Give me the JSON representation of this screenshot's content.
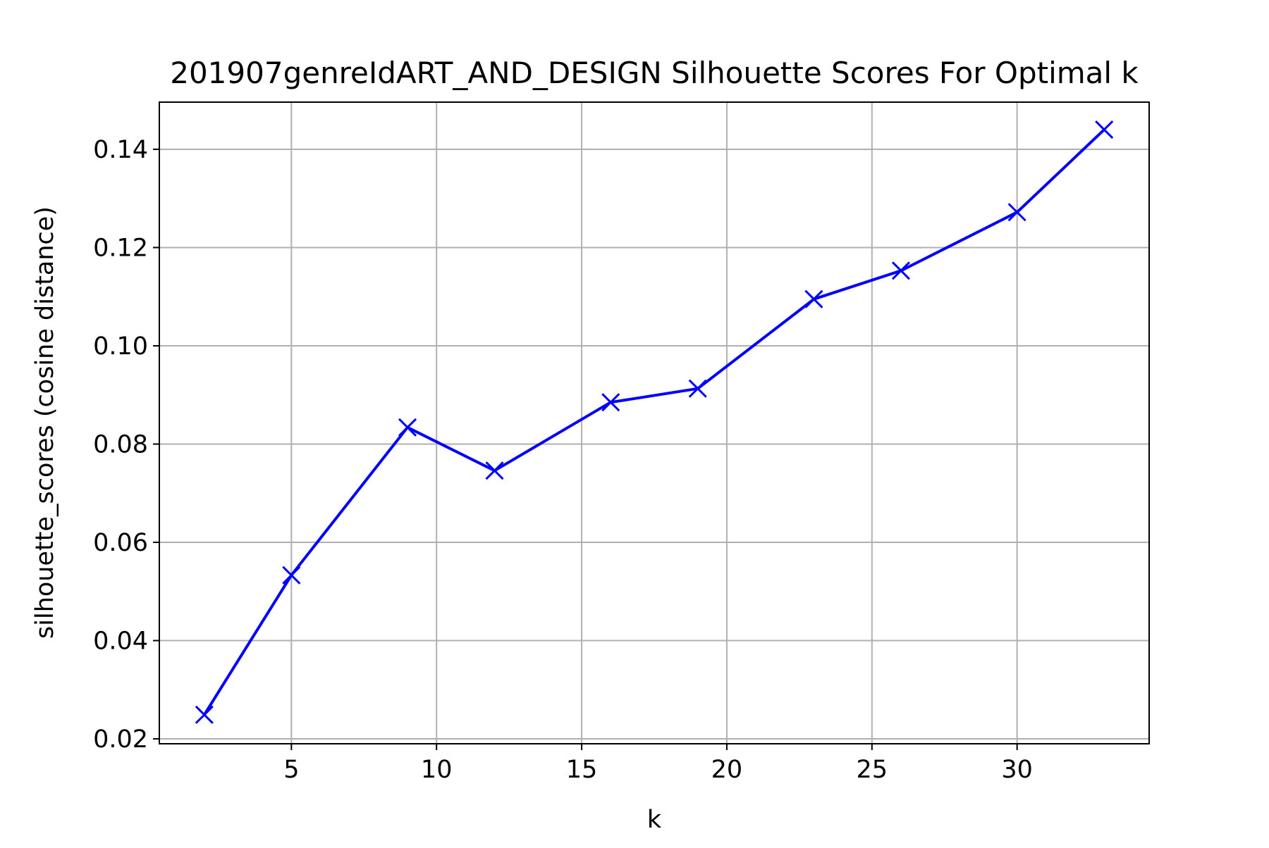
{
  "chart_data": {
    "type": "line",
    "title": "201907genreIdART_AND_DESIGN Silhouette Scores For Optimal k",
    "xlabel": "k",
    "ylabel": "silhouette_scores (cosine distance)",
    "xlim": [
      0.45,
      34.55
    ],
    "ylim": [
      0.019,
      0.1496
    ],
    "x_ticks": [
      5,
      10,
      15,
      20,
      25,
      30
    ],
    "y_ticks": [
      0.02,
      0.04,
      0.06,
      0.08,
      0.1,
      0.12,
      0.14
    ],
    "x_tick_labels": [
      "5",
      "10",
      "15",
      "20",
      "25",
      "30"
    ],
    "y_tick_labels": [
      "0.02",
      "0.04",
      "0.06",
      "0.08",
      "0.10",
      "0.12",
      "0.14"
    ],
    "grid": true,
    "series": [
      {
        "marker": "x",
        "color": "#0000ff",
        "x": [
          2,
          5,
          9,
          12,
          16,
          19,
          23,
          26,
          30,
          33
        ],
        "values": [
          0.0249,
          0.0533,
          0.0834,
          0.0746,
          0.0885,
          0.0913,
          0.1095,
          0.1153,
          0.1272,
          0.144
        ]
      }
    ]
  }
}
